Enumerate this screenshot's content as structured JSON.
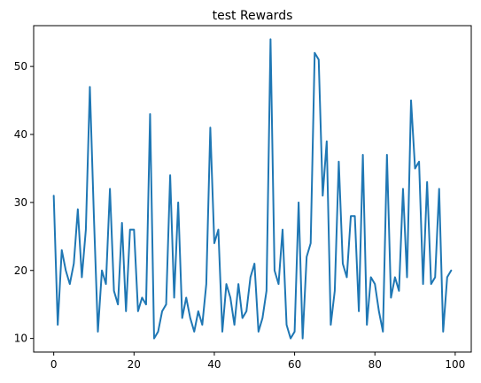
{
  "chart_data": {
    "type": "line",
    "title": "test Rewards",
    "xlabel": "",
    "ylabel": "",
    "xlim": [
      -5,
      104
    ],
    "ylim": [
      8,
      56
    ],
    "xticks": [
      0,
      20,
      40,
      60,
      80,
      100
    ],
    "yticks": [
      10,
      20,
      30,
      40,
      50
    ],
    "grid": false,
    "colors": {
      "line": "#1f77b4",
      "axis": "#000000",
      "background": "#ffffff"
    },
    "series": [
      {
        "x": [
          0,
          1,
          2,
          3,
          4,
          5,
          6,
          7,
          8,
          9,
          10,
          11,
          12,
          13,
          14,
          15,
          16,
          17,
          18,
          19,
          20,
          21,
          22,
          23,
          24,
          25,
          26,
          27,
          28,
          29,
          30,
          31,
          32,
          33,
          34,
          35,
          36,
          37,
          38,
          39,
          40,
          41,
          42,
          43,
          44,
          45,
          46,
          47,
          48,
          49,
          50,
          51,
          52,
          53,
          54,
          55,
          56,
          57,
          58,
          59,
          60,
          61,
          62,
          63,
          64,
          65,
          66,
          67,
          68,
          69,
          70,
          71,
          72,
          73,
          74,
          75,
          76,
          77,
          78,
          79,
          80,
          81,
          82,
          83,
          84,
          85,
          86,
          87,
          88,
          89,
          90,
          91,
          92,
          93,
          94,
          95,
          96,
          97,
          98,
          99
        ],
        "values": [
          31,
          12,
          23,
          20,
          18,
          21,
          29,
          19,
          26,
          47,
          28,
          11,
          20,
          18,
          32,
          17,
          15,
          27,
          14,
          26,
          26,
          14,
          16,
          15,
          43,
          10,
          11,
          14,
          15,
          34,
          16,
          30,
          13,
          16,
          13,
          11,
          14,
          12,
          18,
          41,
          24,
          26,
          11,
          18,
          16,
          12,
          18,
          13,
          14,
          19,
          21,
          11,
          13,
          17,
          54,
          20,
          18,
          26,
          12,
          10,
          11,
          30,
          10,
          22,
          24,
          52,
          51,
          31,
          39,
          12,
          17,
          36,
          21,
          19,
          28,
          28,
          14,
          37,
          12,
          19,
          18,
          14,
          11,
          37,
          16,
          19,
          17,
          32,
          19,
          45,
          35,
          36,
          18,
          33,
          18,
          19,
          32,
          11,
          19,
          20
        ]
      }
    ]
  }
}
